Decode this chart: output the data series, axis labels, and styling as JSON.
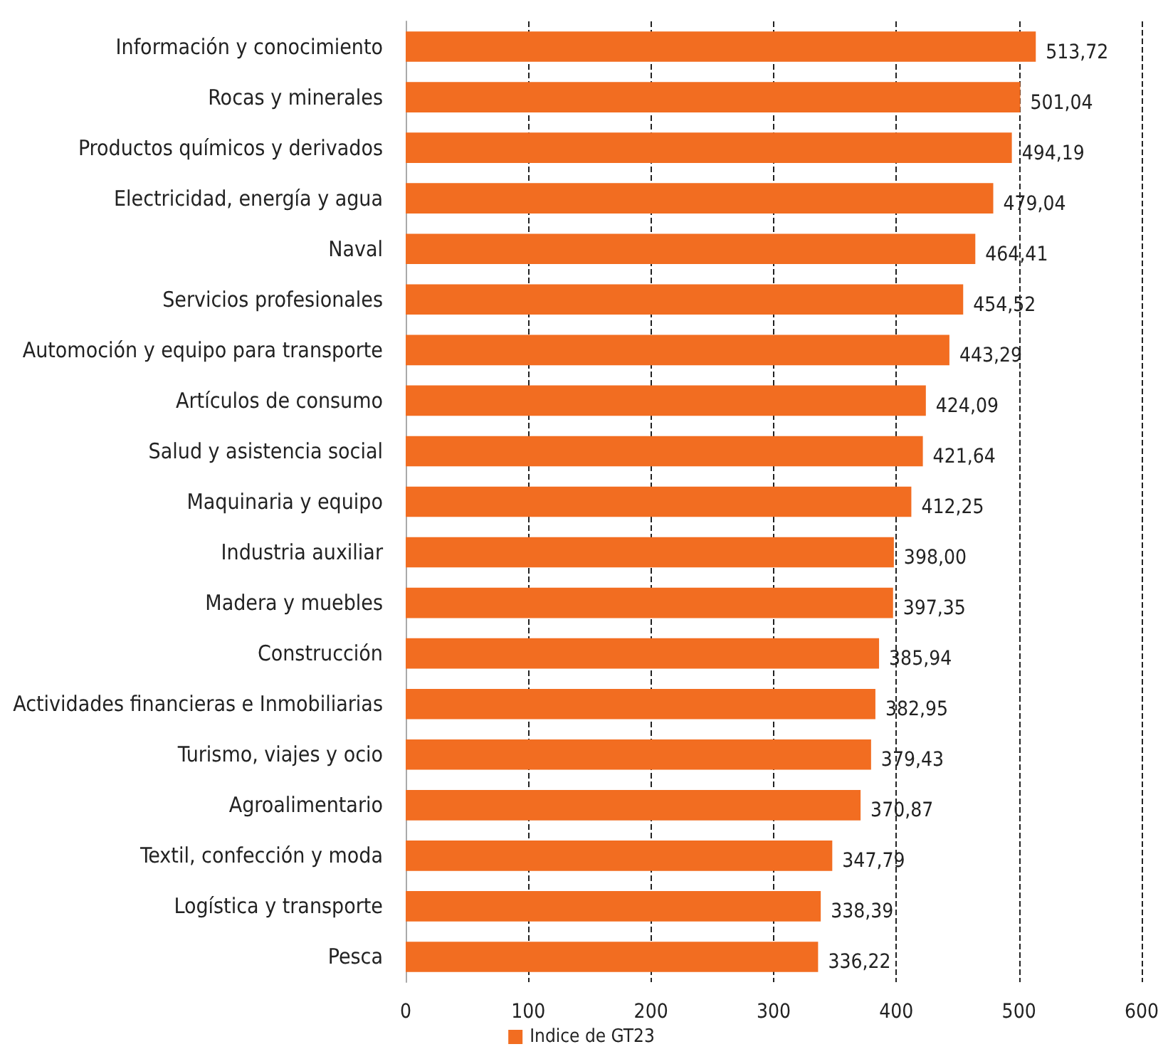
{
  "chart_data": {
    "type": "bar",
    "orientation": "horizontal",
    "categories": [
      "Información y conocimiento",
      "Rocas y minerales",
      "Productos químicos y derivados",
      "Electricidad, energía y agua",
      "Naval",
      "Servicios profesionales",
      "Automoción y equipo para transporte",
      "Artículos de consumo",
      "Salud y asistencia social",
      "Maquinaria y equipo",
      "Industria auxiliar",
      "Madera y muebles",
      "Construcción",
      "Actividades financieras e Inmobiliarias",
      "Turismo, viajes y ocio",
      "Agroalimentario",
      "Textil, confección y moda",
      "Logística y transporte",
      "Pesca"
    ],
    "series": [
      {
        "name": "Indice de GT23",
        "color": "#f26d21",
        "values": [
          513.72,
          501.04,
          494.19,
          479.04,
          464.41,
          454.52,
          443.29,
          424.09,
          421.64,
          412.25,
          398.0,
          397.35,
          385.94,
          382.95,
          379.43,
          370.87,
          347.79,
          338.39,
          336.22
        ],
        "value_labels": [
          "513,72",
          "501,04",
          "494,19",
          "479,04",
          "464,41",
          "454,52",
          "443,29",
          "424,09",
          "421,64",
          "412,25",
          "398,00",
          "397,35",
          "385,94",
          "382,95",
          "379,43",
          "370,87",
          "347,79",
          "338,39",
          "336,22"
        ]
      }
    ],
    "xlim": [
      0,
      600
    ],
    "xticks": [
      0,
      100,
      200,
      300,
      400,
      500,
      600
    ],
    "grid": "x",
    "line_style": "dashed",
    "legend": "bottom"
  }
}
